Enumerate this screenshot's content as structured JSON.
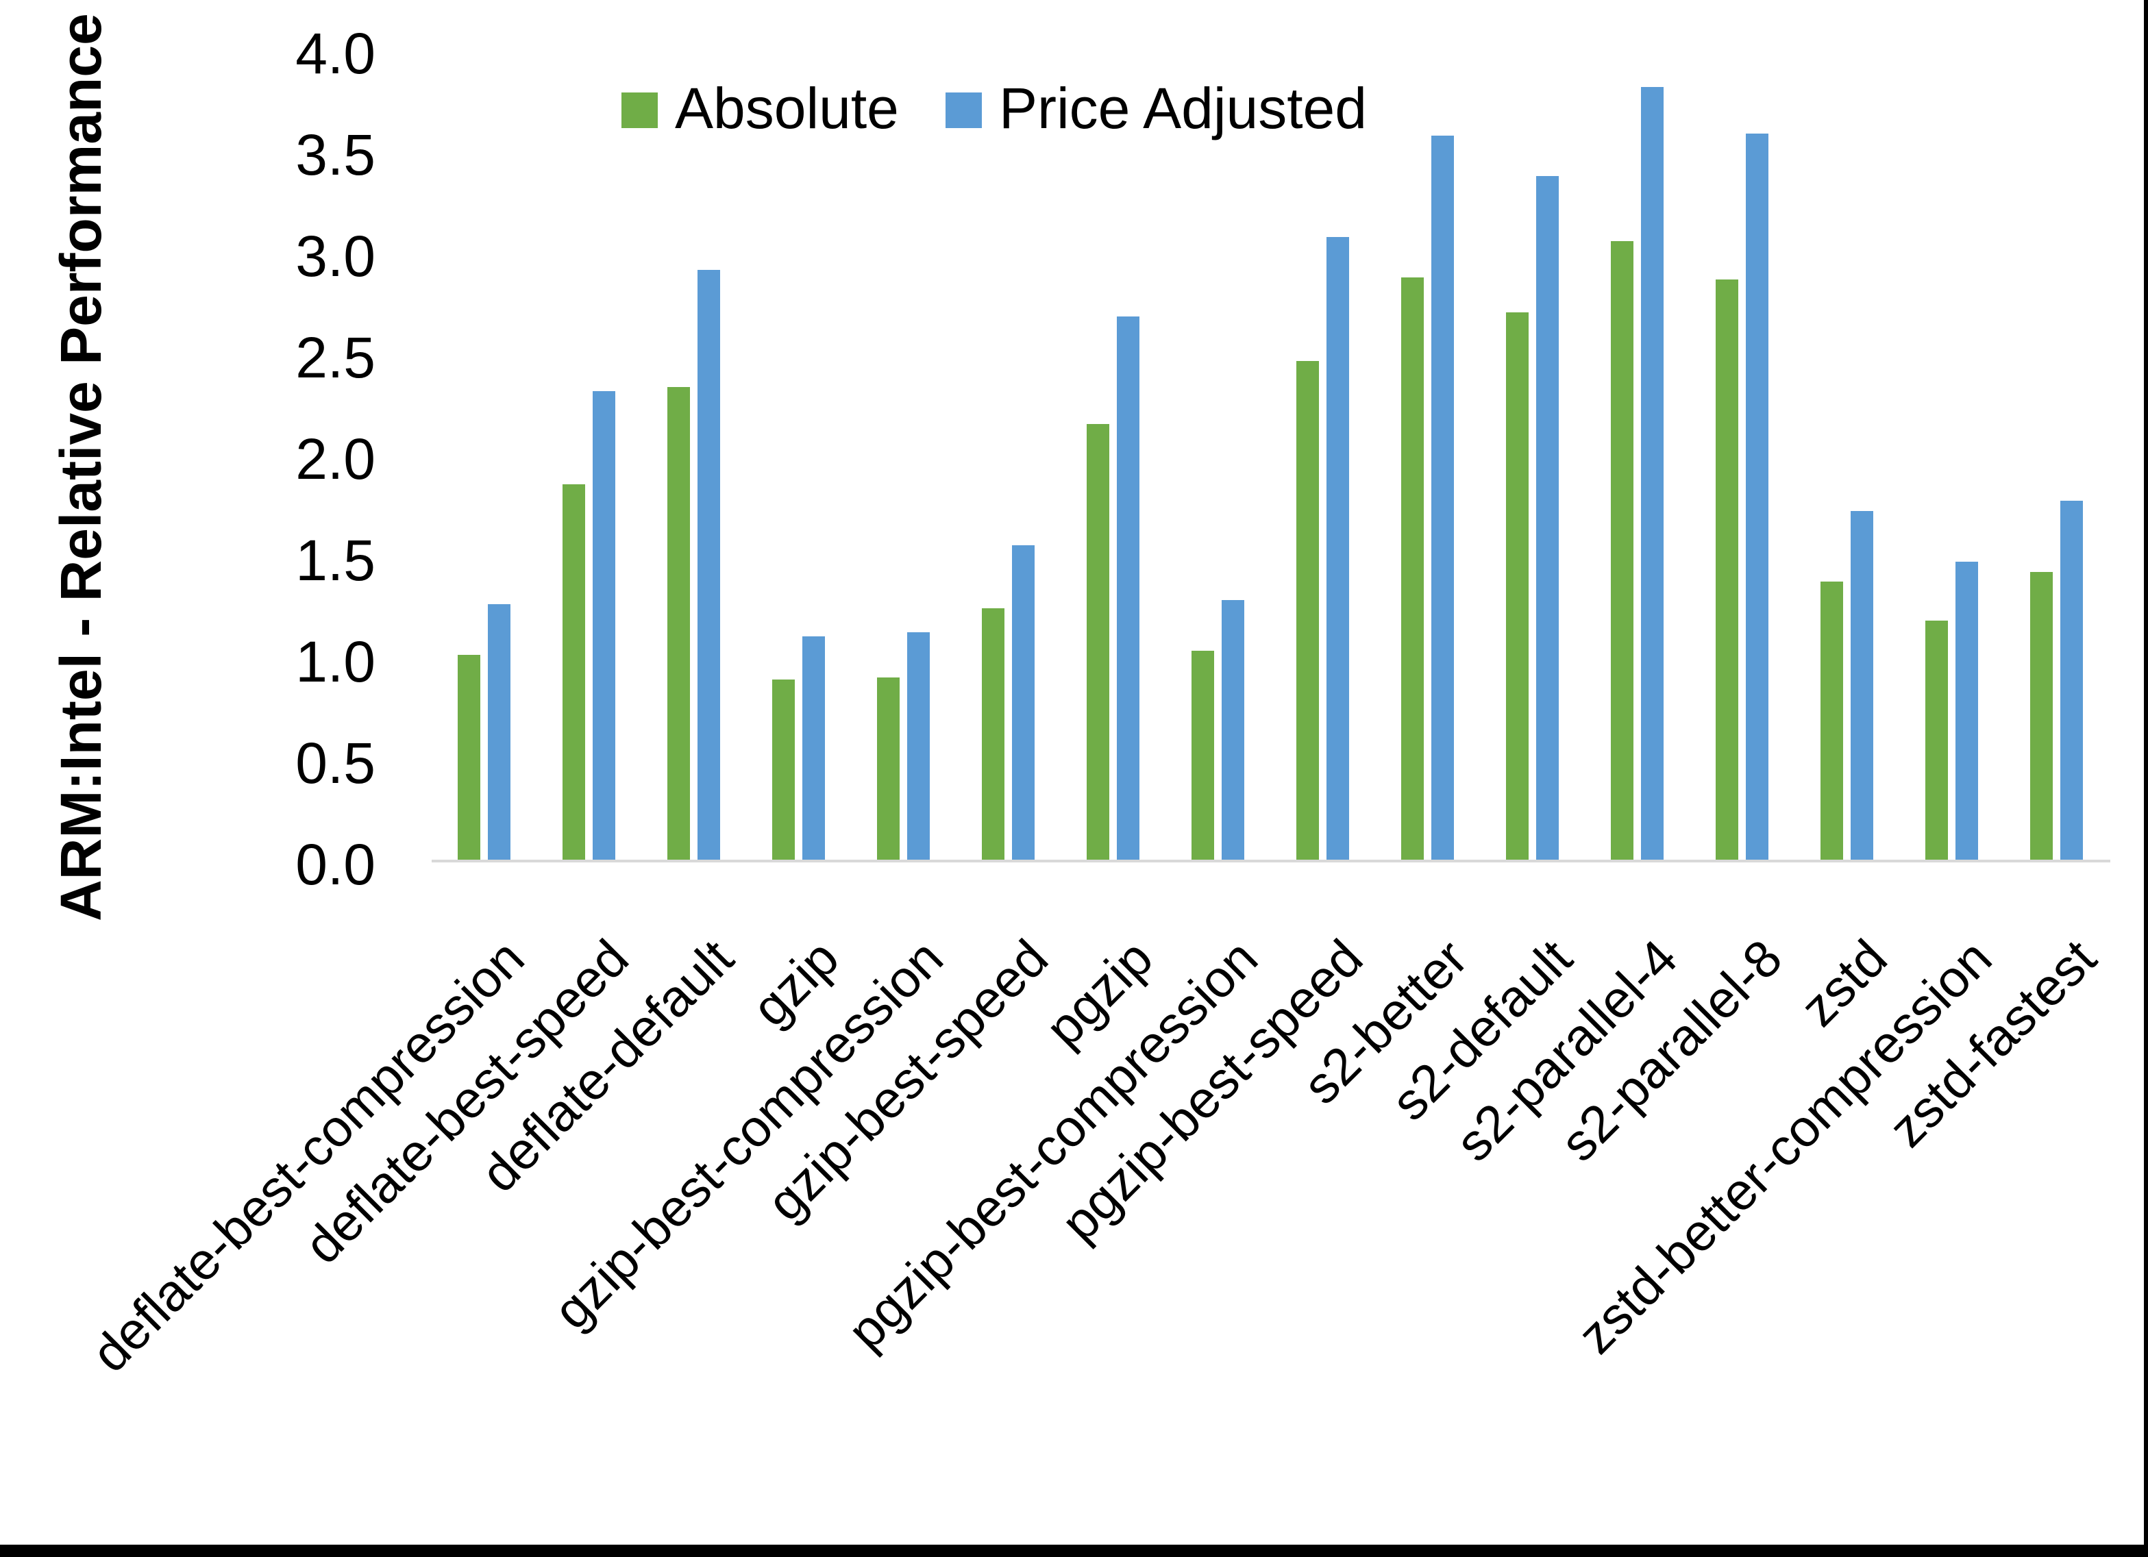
{
  "chart_data": {
    "type": "bar",
    "title": "",
    "xlabel": "",
    "ylabel": "ARM:Intel - Relative Performance",
    "ylim": [
      0.0,
      4.0
    ],
    "ytick_step": 0.5,
    "ytick_labels": [
      "0.0",
      "0.5",
      "1.0",
      "1.5",
      "2.0",
      "2.5",
      "3.0",
      "3.5",
      "4.0"
    ],
    "grid": false,
    "legend_position": "top-center",
    "categories": [
      "deflate-best-compression",
      "deflate-best-speed",
      "deflate-default",
      "gzip",
      "gzip-best-compression",
      "gzip-best-speed",
      "pgzip",
      "pgzip-best-compression",
      "pgzip-best-speed",
      "s2-better",
      "s2-default",
      "s2-parallel-4",
      "s2-parallel-8",
      "zstd",
      "zstd-better-compression",
      "zstd-fastest"
    ],
    "series": [
      {
        "name": "Absolute",
        "color": "#70AD47",
        "values": [
          1.01,
          1.85,
          2.33,
          0.89,
          0.9,
          1.24,
          2.15,
          1.03,
          2.46,
          2.87,
          2.7,
          3.05,
          2.86,
          1.37,
          1.18,
          1.42
        ]
      },
      {
        "name": "Price Adjusted",
        "color": "#5B9BD5",
        "values": [
          1.26,
          2.31,
          2.91,
          1.1,
          1.12,
          1.55,
          2.68,
          1.28,
          3.07,
          3.57,
          3.37,
          3.81,
          3.58,
          1.72,
          1.47,
          1.77
        ]
      }
    ],
    "axis_line_color": "#D9D9D9",
    "text_color": "#000000"
  }
}
